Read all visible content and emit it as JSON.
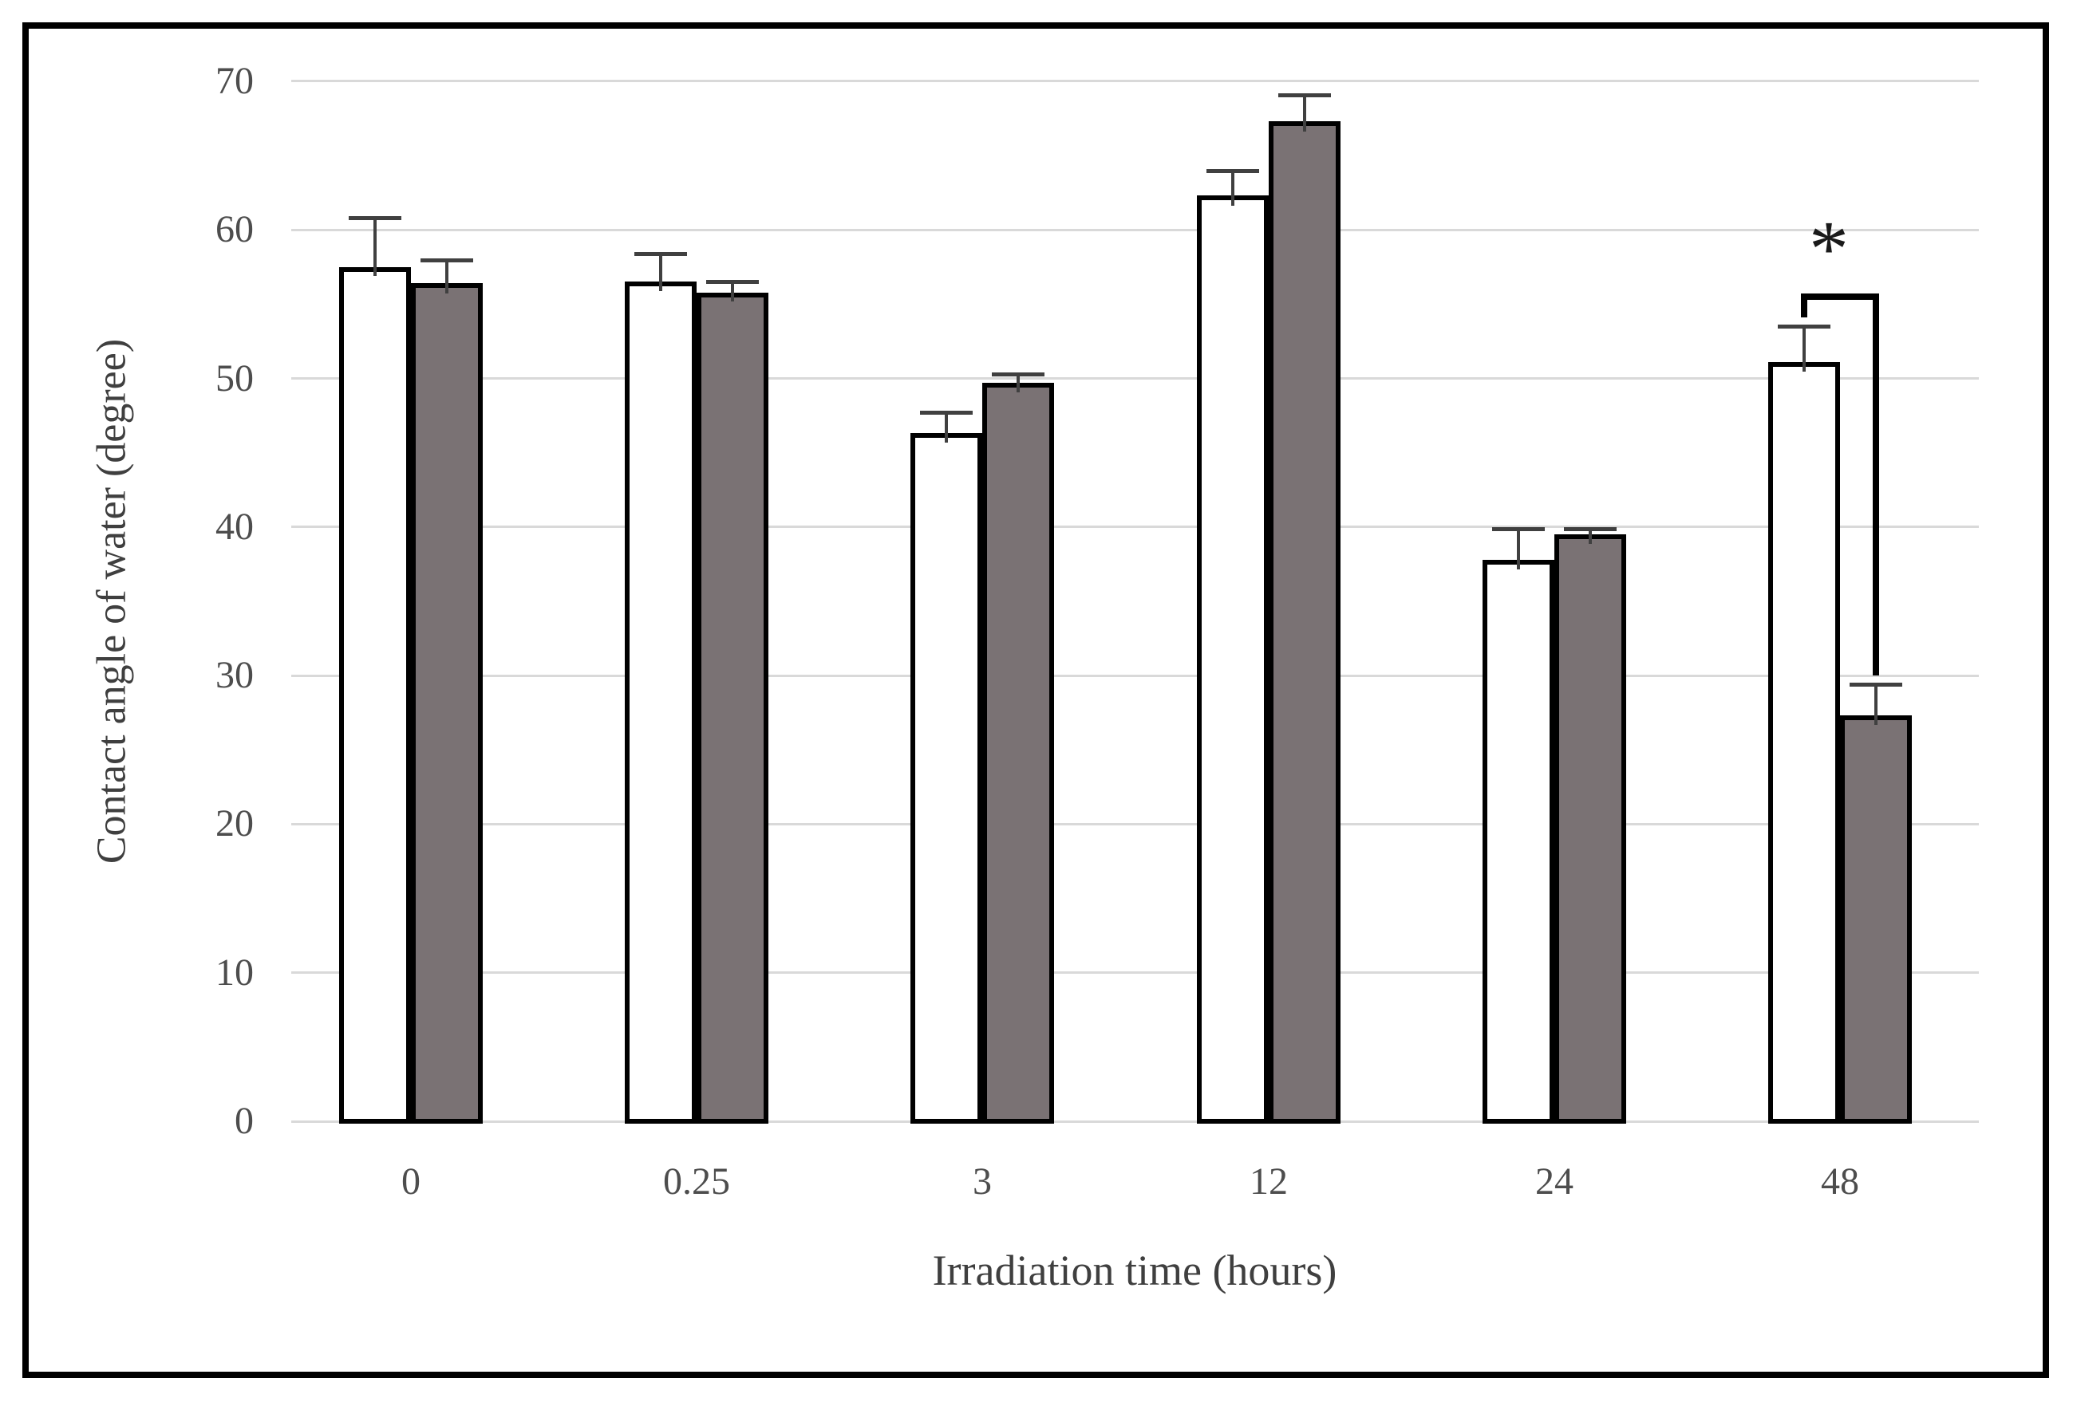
{
  "figure": {
    "background": "#ffffff",
    "frame_color": "#000000"
  },
  "chart_data": {
    "type": "bar",
    "title": "",
    "xlabel": "Irradiation time (hours)",
    "ylabel": "Contact angle of water (degree)",
    "categories": [
      "0",
      "0.25",
      "3",
      "12",
      "24",
      "48"
    ],
    "series": [
      {
        "name": "white-bars",
        "fill": "#ffffff",
        "border": "#000000",
        "values": [
          57.5,
          56.5,
          46.3,
          62.3,
          37.8,
          51.1
        ],
        "errors": [
          3.3,
          1.9,
          1.4,
          1.7,
          2.1,
          2.4
        ]
      },
      {
        "name": "gray-bars",
        "fill": "#7a7274",
        "border": "#000000",
        "values": [
          56.4,
          55.8,
          49.7,
          67.3,
          39.5,
          27.3
        ],
        "errors": [
          1.6,
          0.7,
          0.6,
          1.8,
          0.4,
          2.1
        ]
      }
    ],
    "ylim": [
      0,
      70
    ],
    "yticks": [
      0,
      10,
      20,
      30,
      40,
      50,
      60,
      70
    ],
    "grid": true,
    "legend": "none",
    "gridline_color": "#d9d9d9",
    "error_bar_color": "#404040",
    "text_color": "#3f3f3f",
    "annotations": [
      {
        "type": "significance-bracket",
        "symbol": "*",
        "category": "48",
        "from_series": "white-bars",
        "to_series": "gray-bars",
        "bracket_top_value": 55.5,
        "bracket_drop_value": 30
      }
    ]
  }
}
